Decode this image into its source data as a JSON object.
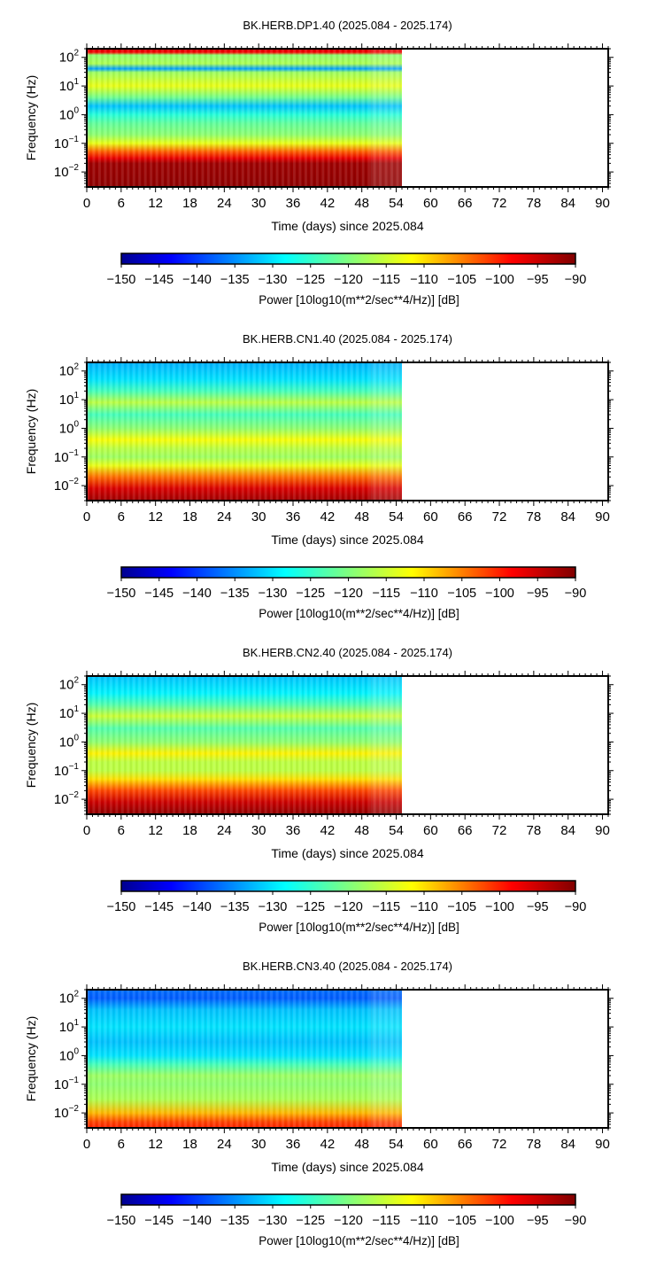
{
  "chart_data": [
    {
      "type": "heatmap",
      "title": "BK.HERB.DP1.40 (2025.084 - 2025.174)",
      "xlabel": "Time (days) since 2025.084",
      "ylabel": "Frequency (Hz)",
      "xlim": [
        0,
        91
      ],
      "ylim": [
        0.003,
        200
      ],
      "y_scale": "log",
      "data_end_day": 55,
      "x_ticks": [
        "0",
        "6",
        "12",
        "18",
        "24",
        "30",
        "36",
        "42",
        "48",
        "54",
        "60",
        "66",
        "72",
        "78",
        "84",
        "90"
      ],
      "y_ticks": [
        {
          "value": 100,
          "label": "10",
          "exp": "2"
        },
        {
          "value": 10,
          "label": "10",
          "exp": "1"
        },
        {
          "value": 1,
          "label": "10",
          "exp": "0"
        },
        {
          "value": 0.1,
          "label": "10",
          "exp": "−1"
        },
        {
          "value": 0.01,
          "label": "10",
          "exp": "−2"
        }
      ],
      "power_profile": [
        {
          "f": 200,
          "db": -95
        },
        {
          "f": 150,
          "db": -98
        },
        {
          "f": 120,
          "db": -119
        },
        {
          "f": 60,
          "db": -117
        },
        {
          "f": 40,
          "db": -134
        },
        {
          "f": 30,
          "db": -118
        },
        {
          "f": 10,
          "db": -113
        },
        {
          "f": 4,
          "db": -121
        },
        {
          "f": 2,
          "db": -132
        },
        {
          "f": 1,
          "db": -126
        },
        {
          "f": 0.5,
          "db": -122
        },
        {
          "f": 0.2,
          "db": -119
        },
        {
          "f": 0.1,
          "db": -113
        },
        {
          "f": 0.05,
          "db": -103
        },
        {
          "f": 0.03,
          "db": -97
        },
        {
          "f": 0.02,
          "db": -92
        },
        {
          "f": 0.003,
          "db": -91
        }
      ],
      "colorbar": {
        "label": "Power [10log10(m**2/sec**4/Hz)] [dB]",
        "range": [
          -150,
          -90
        ],
        "ticks": [
          "−150",
          "−145",
          "−140",
          "−135",
          "−130",
          "−125",
          "−120",
          "−115",
          "−110",
          "−105",
          "−100",
          "−95",
          "−90"
        ]
      }
    },
    {
      "type": "heatmap",
      "title": "BK.HERB.CN1.40 (2025.084 - 2025.174)",
      "xlabel": "Time (days) since 2025.084",
      "ylabel": "Frequency (Hz)",
      "xlim": [
        0,
        91
      ],
      "ylim": [
        0.003,
        200
      ],
      "y_scale": "log",
      "data_end_day": 55,
      "x_ticks": [
        "0",
        "6",
        "12",
        "18",
        "24",
        "30",
        "36",
        "42",
        "48",
        "54",
        "60",
        "66",
        "72",
        "78",
        "84",
        "90"
      ],
      "y_ticks": [
        {
          "value": 100,
          "label": "10",
          "exp": "2"
        },
        {
          "value": 10,
          "label": "10",
          "exp": "1"
        },
        {
          "value": 1,
          "label": "10",
          "exp": "0"
        },
        {
          "value": 0.1,
          "label": "10",
          "exp": "−1"
        },
        {
          "value": 0.01,
          "label": "10",
          "exp": "−2"
        }
      ],
      "power_profile": [
        {
          "f": 200,
          "db": -133
        },
        {
          "f": 50,
          "db": -130
        },
        {
          "f": 20,
          "db": -124
        },
        {
          "f": 8,
          "db": -116
        },
        {
          "f": 3,
          "db": -124
        },
        {
          "f": 1,
          "db": -119
        },
        {
          "f": 0.4,
          "db": -112
        },
        {
          "f": 0.2,
          "db": -116
        },
        {
          "f": 0.1,
          "db": -118
        },
        {
          "f": 0.05,
          "db": -113
        },
        {
          "f": 0.02,
          "db": -104
        },
        {
          "f": 0.008,
          "db": -96
        },
        {
          "f": 0.003,
          "db": -92
        }
      ],
      "colorbar": {
        "label": "Power [10log10(m**2/sec**4/Hz)] [dB]",
        "range": [
          -150,
          -90
        ],
        "ticks": [
          "−150",
          "−145",
          "−140",
          "−135",
          "−130",
          "−125",
          "−120",
          "−115",
          "−110",
          "−105",
          "−100",
          "−95",
          "−90"
        ]
      }
    },
    {
      "type": "heatmap",
      "title": "BK.HERB.CN2.40 (2025.084 - 2025.174)",
      "xlabel": "Time (days) since 2025.084",
      "ylabel": "Frequency (Hz)",
      "xlim": [
        0,
        91
      ],
      "ylim": [
        0.003,
        200
      ],
      "y_scale": "log",
      "data_end_day": 55,
      "x_ticks": [
        "0",
        "6",
        "12",
        "18",
        "24",
        "30",
        "36",
        "42",
        "48",
        "54",
        "60",
        "66",
        "72",
        "78",
        "84",
        "90"
      ],
      "y_ticks": [
        {
          "value": 100,
          "label": "10",
          "exp": "2"
        },
        {
          "value": 10,
          "label": "10",
          "exp": "1"
        },
        {
          "value": 1,
          "label": "10",
          "exp": "0"
        },
        {
          "value": 0.1,
          "label": "10",
          "exp": "−1"
        },
        {
          "value": 0.01,
          "label": "10",
          "exp": "−2"
        }
      ],
      "power_profile": [
        {
          "f": 200,
          "db": -132
        },
        {
          "f": 50,
          "db": -129
        },
        {
          "f": 20,
          "db": -123
        },
        {
          "f": 8,
          "db": -115
        },
        {
          "f": 3,
          "db": -123
        },
        {
          "f": 1,
          "db": -119
        },
        {
          "f": 0.4,
          "db": -111
        },
        {
          "f": 0.2,
          "db": -116
        },
        {
          "f": 0.1,
          "db": -116
        },
        {
          "f": 0.05,
          "db": -110
        },
        {
          "f": 0.02,
          "db": -102
        },
        {
          "f": 0.008,
          "db": -95
        },
        {
          "f": 0.003,
          "db": -91
        }
      ],
      "colorbar": {
        "label": "Power [10log10(m**2/sec**4/Hz)] [dB]",
        "range": [
          -150,
          -90
        ],
        "ticks": [
          "−150",
          "−145",
          "−140",
          "−135",
          "−130",
          "−125",
          "−120",
          "−115",
          "−110",
          "−105",
          "−100",
          "−95",
          "−90"
        ]
      }
    },
    {
      "type": "heatmap",
      "title": "BK.HERB.CN3.40 (2025.084 - 2025.174)",
      "xlabel": "Time (days) since 2025.084",
      "ylabel": "Frequency (Hz)",
      "xlim": [
        0,
        91
      ],
      "ylim": [
        0.003,
        200
      ],
      "y_scale": "log",
      "data_end_day": 55,
      "x_ticks": [
        "0",
        "6",
        "12",
        "18",
        "24",
        "30",
        "36",
        "42",
        "48",
        "54",
        "60",
        "66",
        "72",
        "78",
        "84",
        "90"
      ],
      "y_ticks": [
        {
          "value": 100,
          "label": "10",
          "exp": "2"
        },
        {
          "value": 10,
          "label": "10",
          "exp": "1"
        },
        {
          "value": 1,
          "label": "10",
          "exp": "0"
        },
        {
          "value": 0.1,
          "label": "10",
          "exp": "−1"
        },
        {
          "value": 0.01,
          "label": "10",
          "exp": "−2"
        }
      ],
      "power_profile": [
        {
          "f": 200,
          "db": -137
        },
        {
          "f": 100,
          "db": -138
        },
        {
          "f": 40,
          "db": -132
        },
        {
          "f": 10,
          "db": -130
        },
        {
          "f": 3,
          "db": -132
        },
        {
          "f": 1,
          "db": -130
        },
        {
          "f": 0.5,
          "db": -124
        },
        {
          "f": 0.2,
          "db": -118
        },
        {
          "f": 0.1,
          "db": -119
        },
        {
          "f": 0.03,
          "db": -117
        },
        {
          "f": 0.01,
          "db": -108
        },
        {
          "f": 0.005,
          "db": -102
        },
        {
          "f": 0.003,
          "db": -100
        }
      ],
      "colorbar": {
        "label": "Power [10log10(m**2/sec**4/Hz)] [dB]",
        "range": [
          -150,
          -90
        ],
        "ticks": [
          "−150",
          "−145",
          "−140",
          "−135",
          "−130",
          "−125",
          "−120",
          "−115",
          "−110",
          "−105",
          "−100",
          "−95",
          "−90"
        ]
      }
    }
  ]
}
